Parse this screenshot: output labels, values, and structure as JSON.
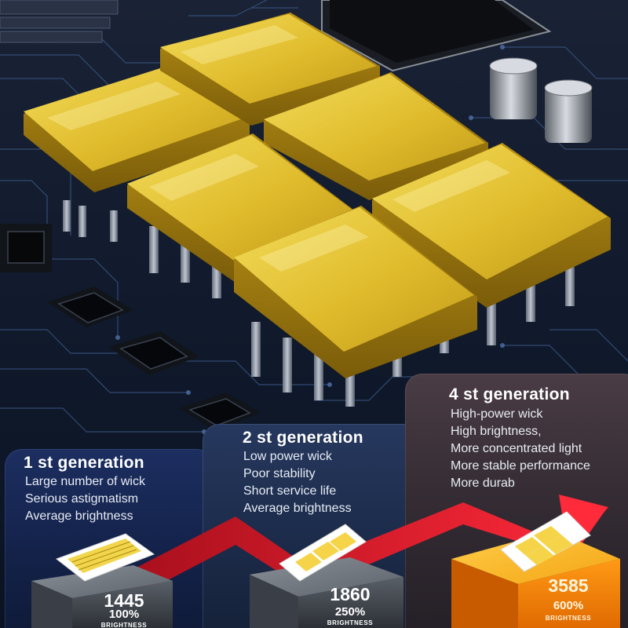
{
  "generations": [
    {
      "title": "1 st generation",
      "features": [
        "Large number of wick",
        "Serious astigmatism",
        "Average brightness"
      ],
      "lumens": "1445",
      "percent": "100%",
      "caption": "BRIGHTNESS"
    },
    {
      "title": "2 st generation",
      "features": [
        "Low power wick",
        "Poor stability",
        "Short service life",
        "Average brightness"
      ],
      "lumens": "1860",
      "percent": "250%",
      "caption": "BRIGHTNESS"
    },
    {
      "title": "4 st generation",
      "features": [
        "High-power wick",
        "High brightness,",
        "More concentrated light",
        "More stable performance",
        "More durab"
      ],
      "lumens": "3585",
      "percent": "600%",
      "caption": "BRIGHTNESS"
    }
  ],
  "colors": {
    "led_chip": "#e3bf32",
    "arrow": "#e51c2c",
    "bar_gray": "#555a62",
    "bar_orange": "#f28a10",
    "card_blue": "#1c2e60"
  }
}
